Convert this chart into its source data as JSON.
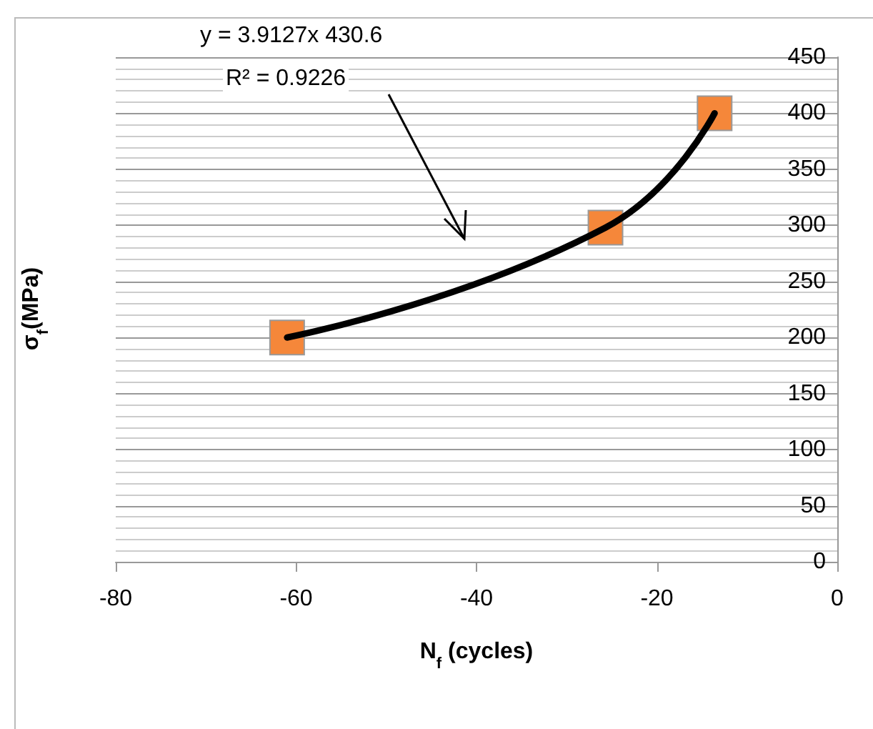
{
  "chart_data": {
    "type": "scatter",
    "xlabel": "N$_{f}$ (cycles)",
    "ylabel": "σ$_{f}$(MPa)",
    "annotations": [
      "y = 3.9127x 430.6",
      "R² = 0.9226"
    ],
    "xlim": [
      -80,
      0
    ],
    "xticks": [
      -80,
      -60,
      -40,
      -20,
      0
    ],
    "ylim": [
      0,
      450
    ],
    "yticks": [
      0,
      50,
      100,
      150,
      200,
      250,
      300,
      350,
      400,
      450
    ],
    "grid": "y",
    "series": [
      {
        "type": "line",
        "color": "#000000",
        "marker": "none",
        "line_style": "solid",
        "x": [
          -61,
          -25.7,
          -13.6
        ],
        "values": [
          200,
          298,
          400
        ]
      },
      {
        "color": "#f5873a",
        "marker": "square",
        "x": [
          -61,
          -25.7,
          -13.6
        ],
        "values": [
          200,
          298,
          400
        ]
      }
    ]
  }
}
